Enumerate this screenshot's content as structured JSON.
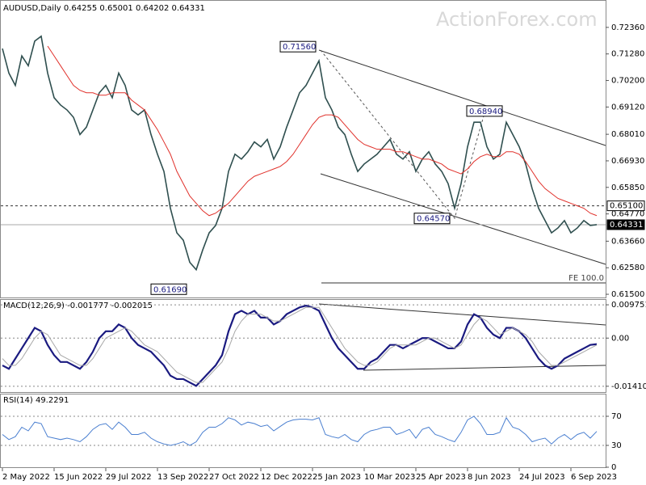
{
  "chart_data": [
    {
      "type": "line",
      "title": "AUDUSD,Daily  0.64255 0.65001 0.64202 0.64331",
      "watermark": "ActionForex.com",
      "ylim": [
        0.6137,
        0.7331
      ],
      "yticks": [
        {
          "value": 0.7236,
          "label": "0.72360"
        },
        {
          "value": 0.7128,
          "label": "0.71280"
        },
        {
          "value": 0.702,
          "label": "0.70200"
        },
        {
          "value": 0.6912,
          "label": "0.69120"
        },
        {
          "value": 0.6801,
          "label": "0.68010"
        },
        {
          "value": 0.6693,
          "label": "0.66930"
        },
        {
          "value": 0.6585,
          "label": "0.65850"
        },
        {
          "value": 0.6477,
          "label": "0.64770"
        },
        {
          "value": 0.6366,
          "label": "0.63660"
        },
        {
          "value": 0.6258,
          "label": "0.62580"
        },
        {
          "value": 0.615,
          "label": "0.61500"
        }
      ],
      "grid": false,
      "series": [
        {
          "color": "#2f4f4f",
          "values": [
            0.715,
            0.705,
            0.7,
            0.712,
            0.708,
            0.718,
            0.72,
            0.705,
            0.695,
            0.692,
            0.69,
            0.687,
            0.68,
            0.683,
            0.69,
            0.697,
            0.7,
            0.695,
            0.705,
            0.7,
            0.69,
            0.688,
            0.69,
            0.68,
            0.672,
            0.665,
            0.65,
            0.64,
            0.637,
            0.628,
            0.625,
            0.633,
            0.64,
            0.643,
            0.65,
            0.665,
            0.672,
            0.67,
            0.673,
            0.677,
            0.675,
            0.678,
            0.67,
            0.675,
            0.683,
            0.69,
            0.697,
            0.7,
            0.705,
            0.71,
            0.695,
            0.69,
            0.683,
            0.68,
            0.672,
            0.665,
            0.668,
            0.67,
            0.672,
            0.675,
            0.678,
            0.672,
            0.67,
            0.673,
            0.665,
            0.67,
            0.673,
            0.668,
            0.665,
            0.66,
            0.65,
            0.66,
            0.675,
            0.685,
            0.685,
            0.675,
            0.67,
            0.672,
            0.685,
            0.68,
            0.675,
            0.668,
            0.658,
            0.65,
            0.645,
            0.64,
            0.642,
            0.645,
            0.64,
            0.642,
            0.645,
            0.643,
            0.64331
          ]
        },
        {
          "color": "#e0302a",
          "values": [
            null,
            null,
            null,
            null,
            null,
            null,
            null,
            0.716,
            0.712,
            0.708,
            0.704,
            0.7,
            0.698,
            0.697,
            0.697,
            0.696,
            0.696,
            0.697,
            0.697,
            0.697,
            0.694,
            0.692,
            0.69,
            0.686,
            0.682,
            0.677,
            0.672,
            0.665,
            0.66,
            0.655,
            0.652,
            0.649,
            0.647,
            0.648,
            0.65,
            0.652,
            0.655,
            0.658,
            0.661,
            0.663,
            0.664,
            0.665,
            0.666,
            0.667,
            0.669,
            0.672,
            0.676,
            0.68,
            0.684,
            0.687,
            0.688,
            0.688,
            0.687,
            0.684,
            0.681,
            0.678,
            0.676,
            0.675,
            0.674,
            0.674,
            0.674,
            0.673,
            0.673,
            0.672,
            0.671,
            0.67,
            0.67,
            0.669,
            0.668,
            0.666,
            0.665,
            0.664,
            0.666,
            0.669,
            0.671,
            0.672,
            0.671,
            0.671,
            0.673,
            0.673,
            0.672,
            0.669,
            0.665,
            0.661,
            0.658,
            0.656,
            0.654,
            0.653,
            0.652,
            0.651,
            0.65,
            0.648,
            0.647
          ]
        }
      ],
      "annotations": [
        {
          "value": 0.7156,
          "label": "0.71560"
        },
        {
          "value": 0.6894,
          "label": "0.68940"
        },
        {
          "value": 0.6457,
          "label": "0.64570"
        },
        {
          "value": 0.6169,
          "label": "0.61690"
        }
      ],
      "levels": [
        {
          "value": 0.651,
          "label": "0.65100"
        },
        {
          "value": 0.64331,
          "label": "0.64331"
        }
      ],
      "fe_label": "FE 100.0"
    },
    {
      "type": "line",
      "title": "MACD(12,26,9) -0.001777 -0.002015",
      "ylim": [
        -0.0158,
        0.01095
      ],
      "yticks": [
        0.009751,
        {
          "value": 0,
          "label": "0.00"
        },
        -0.014107
      ],
      "grid": true,
      "series": [
        {
          "color": "#1a1a80",
          "values": [
            -0.008,
            -0.009,
            -0.006,
            -0.003,
            0.0,
            0.003,
            0.002,
            -0.002,
            -0.005,
            -0.007,
            -0.007,
            -0.008,
            -0.009,
            -0.007,
            -0.004,
            0.0,
            0.002,
            0.002,
            0.004,
            0.003,
            0.0,
            -0.002,
            -0.003,
            -0.004,
            -0.006,
            -0.008,
            -0.011,
            -0.012,
            -0.012,
            -0.013,
            -0.014,
            -0.012,
            -0.01,
            -0.008,
            -0.005,
            0.002,
            0.007,
            0.008,
            0.007,
            0.008,
            0.006,
            0.006,
            0.004,
            0.005,
            0.007,
            0.008,
            0.009,
            0.0095,
            0.009,
            0.008,
            0.004,
            0.0,
            -0.003,
            -0.005,
            -0.007,
            -0.009,
            -0.009,
            -0.007,
            -0.006,
            -0.004,
            -0.002,
            -0.002,
            -0.003,
            -0.002,
            -0.001,
            0.0,
            0.0,
            -0.001,
            -0.002,
            -0.003,
            -0.003,
            -0.001,
            0.004,
            0.007,
            0.006,
            0.003,
            0.001,
            0.0,
            0.003,
            0.003,
            0.002,
            0.0,
            -0.003,
            -0.006,
            -0.008,
            -0.009,
            -0.008,
            -0.006,
            -0.005,
            -0.004,
            -0.003,
            -0.002,
            -0.001777
          ]
        },
        {
          "color": "#a8a8a8",
          "values": [
            -0.006,
            -0.008,
            -0.008,
            -0.006,
            -0.003,
            0.0,
            0.002,
            0.001,
            -0.002,
            -0.005,
            -0.006,
            -0.007,
            -0.008,
            -0.008,
            -0.006,
            -0.003,
            0.0,
            0.001,
            0.002,
            0.003,
            0.002,
            0.0,
            -0.002,
            -0.003,
            -0.004,
            -0.006,
            -0.008,
            -0.01,
            -0.011,
            -0.012,
            -0.013,
            -0.013,
            -0.011,
            -0.009,
            -0.007,
            -0.003,
            0.002,
            0.005,
            0.007,
            0.007,
            0.007,
            0.006,
            0.005,
            0.005,
            0.006,
            0.007,
            0.008,
            0.009,
            0.009,
            0.009,
            0.006,
            0.003,
            0.0,
            -0.003,
            -0.005,
            -0.007,
            -0.008,
            -0.008,
            -0.007,
            -0.005,
            -0.003,
            -0.002,
            -0.002,
            -0.002,
            -0.002,
            -0.001,
            0.0,
            0.0,
            -0.001,
            -0.002,
            -0.003,
            -0.002,
            0.001,
            0.004,
            0.006,
            0.005,
            0.003,
            0.001,
            0.002,
            0.003,
            0.002,
            0.001,
            -0.001,
            -0.004,
            -0.006,
            -0.008,
            -0.008,
            -0.007,
            -0.006,
            -0.005,
            -0.004,
            -0.003,
            -0.002015
          ]
        }
      ]
    },
    {
      "type": "line",
      "title": "RSI(14) 49.2291",
      "ylim": [
        0,
        100
      ],
      "yticks": [
        70,
        30,
        0
      ],
      "grid": true,
      "categories": [
        "2 May 2022",
        null,
        null,
        null,
        null,
        null,
        null,
        null,
        "15 Jun 2022",
        null,
        null,
        null,
        null,
        null,
        null,
        null,
        "29 Jul 2022",
        null,
        null,
        null,
        null,
        null,
        null,
        null,
        "13 Sep 2022",
        null,
        null,
        null,
        null,
        null,
        null,
        null,
        "27 Oct 2022",
        null,
        null,
        null,
        null,
        null,
        null,
        null,
        "12 Dec 2022",
        null,
        null,
        null,
        null,
        null,
        null,
        null,
        "25 Jan 2023",
        null,
        null,
        null,
        null,
        null,
        null,
        null,
        "10 Mar 2023",
        null,
        null,
        null,
        null,
        null,
        null,
        null,
        "25 Apr 2023",
        null,
        null,
        null,
        null,
        null,
        null,
        null,
        "8 Jun 2023",
        null,
        null,
        null,
        null,
        null,
        null,
        null,
        "24 Jul 2023",
        null,
        null,
        null,
        null,
        null,
        null,
        null,
        "6 Sep 2023",
        null,
        null,
        null,
        null
      ],
      "series": [
        {
          "color": "#4a7fd0",
          "values": [
            45,
            38,
            42,
            55,
            50,
            62,
            60,
            42,
            40,
            38,
            40,
            38,
            35,
            42,
            52,
            58,
            60,
            52,
            62,
            55,
            45,
            45,
            48,
            40,
            35,
            32,
            30,
            32,
            35,
            30,
            35,
            48,
            55,
            55,
            60,
            68,
            65,
            58,
            62,
            60,
            56,
            58,
            50,
            56,
            62,
            65,
            66,
            66,
            65,
            68,
            45,
            42,
            40,
            45,
            38,
            35,
            45,
            50,
            52,
            55,
            55,
            45,
            48,
            52,
            40,
            52,
            55,
            45,
            42,
            38,
            35,
            48,
            65,
            70,
            60,
            45,
            45,
            48,
            68,
            55,
            52,
            45,
            35,
            38,
            40,
            32,
            40,
            45,
            38,
            45,
            48,
            40,
            49.2291
          ]
        }
      ]
    }
  ]
}
